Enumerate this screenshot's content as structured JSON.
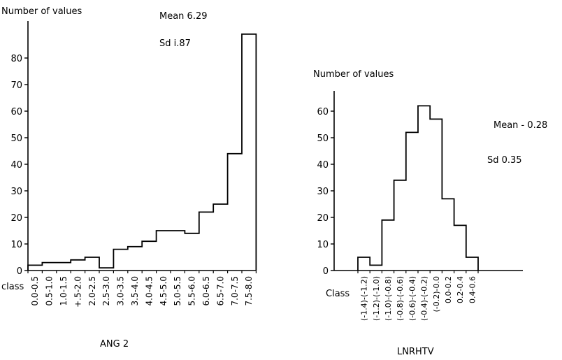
{
  "chart_data": [
    {
      "type": "bar",
      "ylabel": "Number of values",
      "xlabel": "ANG 2",
      "class_label": "class",
      "stats": {
        "mean": "Mean 6.29",
        "sd": "Sd  i.87"
      },
      "categories": [
        "0.0-0.5",
        "0.5-1.0",
        "1.0-1.5",
        "+.5-2.0",
        "2.0-2.5",
        "2.5-3.0",
        "3.0-3.5",
        "3.5-4.0",
        "4.0-4.5",
        "4.5-5.0",
        "5.0-5.5",
        "5.5-6.0",
        "6.0-6.5",
        "6.5-7.0",
        "7.0-7.5",
        "7.5-8.0"
      ],
      "values": [
        2,
        3,
        3,
        4,
        5,
        1,
        8,
        9,
        11,
        15,
        15,
        14,
        22,
        25,
        44,
        89
      ],
      "yticks": [
        0,
        10,
        20,
        30,
        40,
        50,
        60,
        70,
        80
      ],
      "ylim": [
        0,
        89
      ]
    },
    {
      "type": "bar",
      "ylabel": "Number of values",
      "xlabel": "LNRHTV",
      "class_label": "Class",
      "stats": {
        "mean": "Mean - 0.28",
        "sd": "Sd   0.35"
      },
      "categories": [
        "(-1.4)-(-1.2)",
        "(-1.2)-(-1.0)",
        "(-1.0)-(-0.8)",
        "(-0.8)-(-0.6)",
        "(-0.6)-(-0.4)",
        "(-0.4)-(-0.2)",
        "(-0.2)-0.0",
        "0.0-0.2",
        "0.2-0.4",
        "0.4-0.6"
      ],
      "values": [
        5,
        2,
        19,
        34,
        52,
        62,
        57,
        27,
        17,
        5
      ],
      "yticks": [
        0,
        10,
        20,
        30,
        40,
        50,
        60
      ],
      "ylim": [
        0,
        62
      ]
    }
  ]
}
